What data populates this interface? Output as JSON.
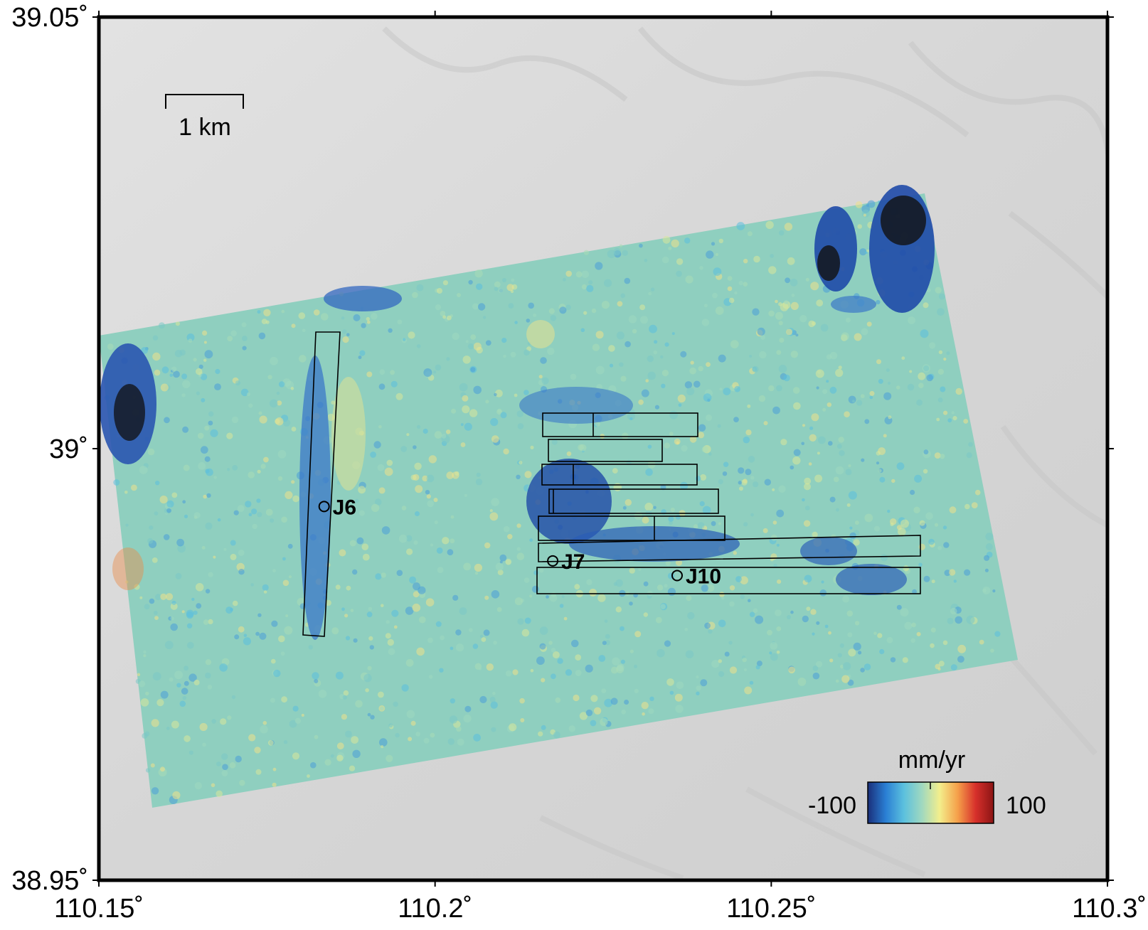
{
  "map": {
    "lon_range": [
      110.15,
      110.3
    ],
    "lat_range": [
      38.95,
      39.05
    ],
    "x_ticks": [
      {
        "value": 110.15,
        "label": "110.15˚"
      },
      {
        "value": 110.2,
        "label": "110.2˚"
      },
      {
        "value": 110.25,
        "label": "110.25˚"
      },
      {
        "value": 110.3,
        "label": "110.3˚"
      }
    ],
    "y_ticks": [
      {
        "value": 38.95,
        "label": "38.95˚"
      },
      {
        "value": 39.0,
        "label": "39˚"
      },
      {
        "value": 39.05,
        "label": "39.05˚"
      }
    ],
    "scale_bar": {
      "label": "1 km"
    },
    "colorbar": {
      "unit": "mm/yr",
      "min_label": "-100",
      "max_label": "100",
      "range": [
        -100,
        100
      ],
      "colors": [
        "#1a2f7a",
        "#2a7fd4",
        "#5bc0de",
        "#9fd8c0",
        "#f3ee8c",
        "#f5a04a",
        "#d7302b",
        "#8b1414"
      ]
    },
    "stations": [
      {
        "name": "J6",
        "lon": 110.1835,
        "lat": 38.9933
      },
      {
        "name": "J7",
        "lon": 110.2175,
        "lat": 38.987
      },
      {
        "name": "J10",
        "lon": 110.236,
        "lat": 38.9853
      }
    ],
    "hillshade_color": "#d8d8d8",
    "background_velocity_color": "#8fcfbf"
  }
}
